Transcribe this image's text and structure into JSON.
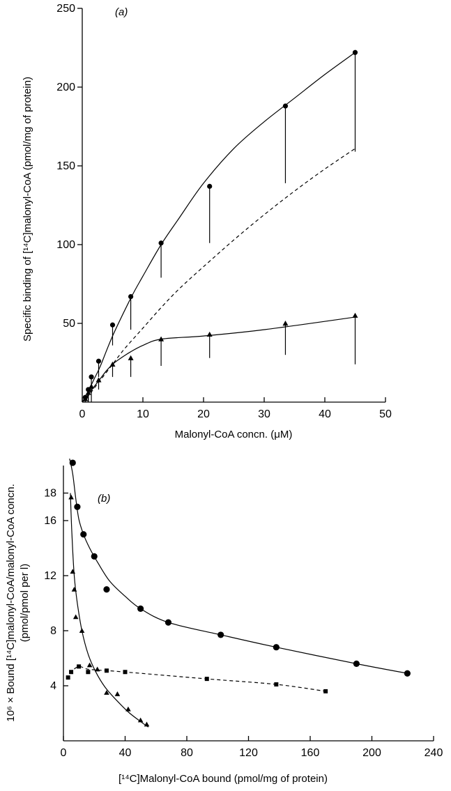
{
  "chart_data": [
    {
      "type": "line",
      "panel_label": "(a)",
      "xlabel": "Malonyl-CoA concn. (μM)",
      "ylabel": "Specific binding of [¹⁴C]malonyl-CoA (pmol/mg of protein)",
      "xlim": [
        0,
        50
      ],
      "ylim": [
        0,
        250
      ],
      "x_ticks": [
        0,
        10,
        20,
        30,
        40,
        50
      ],
      "y_ticks": [
        50,
        100,
        150,
        200,
        250
      ],
      "grid": false,
      "series": [
        {
          "marker": "circle",
          "line": "solid",
          "x": [
            0.5,
            1,
            1.5,
            2.7,
            5,
            8,
            13,
            21,
            33.5,
            45
          ],
          "y": [
            3,
            8,
            16,
            26,
            49,
            67,
            101,
            137,
            188,
            222
          ],
          "error_low": [
            0,
            0,
            6,
            16,
            36,
            46,
            79,
            101,
            139,
            159
          ],
          "curve_x": [
            0,
            1,
            2,
            3,
            5,
            8,
            10,
            13,
            16,
            20,
            25,
            30,
            35,
            40,
            45
          ],
          "curve_y": [
            0,
            7,
            15,
            23,
            42,
            66,
            80,
            100,
            117,
            139,
            161,
            178,
            193,
            208,
            222
          ]
        },
        {
          "marker": "triangle",
          "line": "solid",
          "x": [
            0.5,
            1,
            1.5,
            2.7,
            5,
            8,
            13,
            21,
            33.5,
            45
          ],
          "y": [
            2,
            6,
            10,
            14,
            24,
            28,
            40,
            43,
            50,
            55
          ],
          "error_low": [
            0,
            0,
            0,
            8,
            16,
            16,
            23,
            28,
            30,
            24
          ],
          "curve_x": [
            0,
            1,
            2,
            3,
            4,
            5,
            6,
            8,
            10,
            13,
            20,
            30,
            45
          ],
          "curve_y": [
            0,
            5,
            10,
            15,
            20,
            24,
            27,
            32,
            36,
            40,
            42,
            46,
            54
          ]
        },
        {
          "marker": "none",
          "line": "dashed",
          "curve_x": [
            0,
            1,
            2,
            3,
            5,
            7,
            10,
            13,
            16,
            20,
            25,
            30,
            35,
            40,
            45
          ],
          "curve_y": [
            0,
            4,
            9,
            14,
            24,
            34,
            47,
            60,
            72,
            86,
            103,
            119,
            134,
            148,
            161
          ]
        }
      ]
    },
    {
      "type": "scatter",
      "panel_label": "(b)",
      "xlabel": "[¹⁴C]Malonyl-CoA bound (pmol/mg of protein)",
      "ylabel_line1": "10⁶ × Bound [¹⁴C]malonyl-CoA/malonyl-CoA concn.",
      "ylabel_line2": "(pmol/pmol per l)",
      "xlim": [
        0,
        240
      ],
      "ylim": [
        0,
        20
      ],
      "x_ticks": [
        0,
        40,
        80,
        120,
        160,
        200,
        240
      ],
      "y_ticks": [
        4,
        8,
        12,
        16,
        18
      ],
      "grid": false,
      "series": [
        {
          "marker": "circle",
          "line": "solid",
          "x": [
            6,
            9,
            13,
            20,
            28,
            50,
            68,
            102,
            138,
            190,
            223
          ],
          "y": [
            20.2,
            17,
            15,
            13.4,
            11,
            9.6,
            8.6,
            7.7,
            6.8,
            5.6,
            4.9
          ],
          "curve_x": [
            4,
            6,
            8,
            10,
            13,
            17,
            22,
            30,
            40,
            50,
            68,
            102,
            138,
            190,
            223
          ],
          "curve_y": [
            20.5,
            19.4,
            17.6,
            16.1,
            15,
            14,
            13,
            11.6,
            10.5,
            9.6,
            8.6,
            7.7,
            6.8,
            5.6,
            4.9
          ]
        },
        {
          "marker": "triangle",
          "line": "solid",
          "x": [
            5,
            6,
            7,
            8,
            12,
            17,
            22,
            28,
            35,
            42,
            50,
            54
          ],
          "y": [
            17.7,
            12.3,
            11,
            9,
            8,
            5.5,
            5.2,
            3.5,
            3.4,
            2.3,
            1.5,
            1.2
          ],
          "curve_x": [
            4.5,
            5.5,
            7,
            9,
            12,
            16,
            21,
            27,
            34,
            42,
            50,
            55
          ],
          "curve_y": [
            18,
            15,
            12,
            10,
            8,
            6.3,
            5,
            3.9,
            3,
            2.1,
            1.4,
            1
          ]
        },
        {
          "marker": "square",
          "line": "dashed",
          "x": [
            3,
            5,
            10,
            16,
            28,
            40,
            93,
            138,
            170
          ],
          "y": [
            4.6,
            5,
            5.4,
            5,
            5.1,
            5,
            4.5,
            4.1,
            3.6
          ],
          "curve_x": [
            2,
            5,
            10,
            16,
            28,
            40,
            93,
            138,
            170
          ],
          "curve_y": [
            4.5,
            5,
            5.4,
            5.2,
            5.1,
            5,
            4.5,
            4.1,
            3.6
          ]
        }
      ]
    }
  ]
}
